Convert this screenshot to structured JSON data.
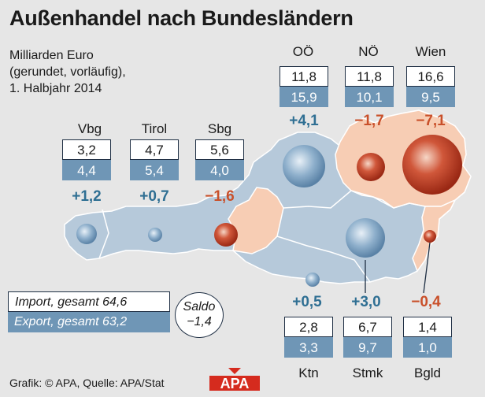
{
  "title": "Außenhandel nach Bundesländern",
  "subtitle": {
    "line1": "Milliarden Euro",
    "line2": "(gerundet, vorläufig),",
    "line3": "1. Halbjahr 2014"
  },
  "colors": {
    "import_border": "#1f2f44",
    "export_fill": "#6f96b6",
    "positive": "#2f6f93",
    "negative": "#c9502a",
    "map_land": "#b6c9da",
    "map_highlight": "#f7cdb4",
    "background": "#e6e6e6"
  },
  "regions": {
    "vbg": {
      "name": "Vbg",
      "import": "3,2",
      "export": "4,4",
      "saldo": "+1,2",
      "sign": "pos"
    },
    "tirol": {
      "name": "Tirol",
      "import": "4,7",
      "export": "5,4",
      "saldo": "+0,7",
      "sign": "pos"
    },
    "sbg": {
      "name": "Sbg",
      "import": "5,6",
      "export": "4,0",
      "saldo": "−1,6",
      "sign": "neg"
    },
    "ooe": {
      "name": "OÖ",
      "import": "11,8",
      "export": "15,9",
      "saldo": "+4,1",
      "sign": "pos"
    },
    "noe": {
      "name": "NÖ",
      "import": "11,8",
      "export": "10,1",
      "saldo": "−1,7",
      "sign": "neg"
    },
    "wien": {
      "name": "Wien",
      "import": "16,6",
      "export": "9,5",
      "saldo": "−7,1",
      "sign": "neg"
    },
    "ktn": {
      "name": "Ktn",
      "import": "2,8",
      "export": "3,3",
      "saldo": "+0,5",
      "sign": "pos"
    },
    "stmk": {
      "name": "Stmk",
      "import": "6,7",
      "export": "9,7",
      "saldo": "+3,0",
      "sign": "pos"
    },
    "bgld": {
      "name": "Bgld",
      "import": "1,4",
      "export": "1,0",
      "saldo": "−0,4",
      "sign": "neg"
    }
  },
  "totals": {
    "import": "Import, gesamt 64,6",
    "export": "Export, gesamt 63,2",
    "saldo_label": "Saldo",
    "saldo_value": "−1,4"
  },
  "footer": "Grafik: © APA, Quelle: APA/Stat",
  "logo_text": "APA"
}
